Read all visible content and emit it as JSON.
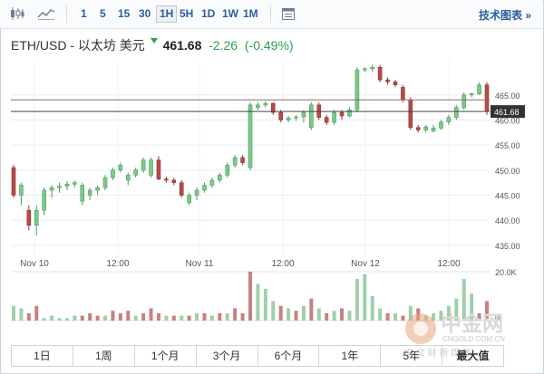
{
  "toolbar": {
    "intervals": [
      "1",
      "5",
      "15",
      "30",
      "1H",
      "5H",
      "1D",
      "1W",
      "1M"
    ],
    "active_interval": "1H",
    "tech_chart_label": "技术图表",
    "tech_chart_suffix": "»"
  },
  "header": {
    "symbol": "ETH/USD - 以太坊 美元",
    "price": "461.68",
    "change": "-2.26",
    "change_pct": "(-0.49%)",
    "colors": {
      "up": "#2aa14a",
      "down": "#c0504d",
      "up_fill": "#7cc98a",
      "down_fill": "#b84a4a"
    }
  },
  "chart_data": {
    "type": "candlestick",
    "y_ticks": [
      "465.00",
      "460.00",
      "455.00",
      "450.00",
      "445.00",
      "440.00",
      "435.00"
    ],
    "ylim": [
      433,
      472
    ],
    "x_ticks": [
      "Nov 10",
      "12:00",
      "Nov 11",
      "12:00",
      "Nov 12",
      "12:00"
    ],
    "last_price": 461.68,
    "ref_line": 464.0,
    "candles": [
      [
        450.5,
        451.0,
        444.5,
        445.0
      ],
      [
        445.0,
        447.5,
        443.0,
        447.0
      ],
      [
        442.0,
        443.0,
        438.0,
        439.0
      ],
      [
        439.0,
        443.0,
        437.0,
        442.0
      ],
      [
        442.0,
        446.5,
        441.0,
        446.0
      ],
      [
        446.0,
        447.0,
        444.5,
        446.5
      ],
      [
        446.5,
        447.5,
        445.5,
        446.8
      ],
      [
        446.8,
        447.8,
        446.0,
        447.2
      ],
      [
        447.2,
        447.9,
        446.5,
        447.5
      ],
      [
        443.8,
        447.5,
        443.0,
        447.0
      ],
      [
        445.0,
        446.5,
        444.0,
        446.0
      ],
      [
        446.0,
        447.0,
        445.0,
        446.5
      ],
      [
        446.5,
        449.0,
        446.0,
        448.5
      ],
      [
        448.5,
        450.5,
        448.0,
        450.0
      ],
      [
        450.0,
        451.5,
        449.5,
        451.0
      ],
      [
        448.0,
        449.5,
        447.0,
        449.0
      ],
      [
        449.0,
        450.5,
        448.5,
        450.0
      ],
      [
        450.0,
        452.5,
        449.5,
        452.0
      ],
      [
        449.0,
        452.5,
        448.5,
        452.0
      ],
      [
        452.0,
        452.8,
        448.0,
        448.2
      ],
      [
        448.2,
        448.7,
        447.5,
        448.0
      ],
      [
        448.0,
        448.5,
        447.0,
        447.5
      ],
      [
        447.5,
        448.0,
        444.5,
        445.0
      ],
      [
        443.5,
        445.5,
        443.0,
        445.0
      ],
      [
        445.0,
        446.5,
        444.0,
        446.0
      ],
      [
        446.0,
        447.5,
        445.5,
        447.0
      ],
      [
        447.0,
        448.5,
        446.5,
        448.0
      ],
      [
        448.0,
        449.5,
        447.5,
        449.0
      ],
      [
        449.0,
        451.5,
        448.5,
        451.0
      ],
      [
        451.0,
        453.0,
        450.5,
        452.5
      ],
      [
        452.5,
        453.0,
        451.0,
        451.5
      ],
      [
        450.5,
        463.5,
        450.0,
        463.0
      ],
      [
        462.5,
        463.5,
        462.0,
        463.0
      ],
      [
        463.0,
        463.8,
        462.5,
        463.3
      ],
      [
        463.3,
        463.5,
        461.0,
        461.5
      ],
      [
        461.5,
        462.0,
        459.5,
        460.0
      ],
      [
        460.0,
        460.8,
        459.5,
        460.4
      ],
      [
        460.4,
        461.0,
        459.8,
        460.6
      ],
      [
        460.6,
        462.0,
        459.5,
        461.5
      ],
      [
        458.5,
        463.5,
        458.0,
        463.0
      ],
      [
        463.0,
        463.5,
        460.0,
        460.5
      ],
      [
        460.5,
        461.0,
        459.0,
        459.5
      ],
      [
        459.5,
        462.0,
        459.0,
        461.5
      ],
      [
        461.5,
        462.0,
        460.0,
        460.8
      ],
      [
        460.8,
        462.5,
        460.5,
        462.0
      ],
      [
        462.0,
        470.5,
        461.5,
        470.0
      ],
      [
        470.0,
        470.5,
        469.5,
        470.2
      ],
      [
        470.2,
        471.0,
        469.5,
        470.5
      ],
      [
        470.5,
        471.0,
        467.5,
        468.0
      ],
      [
        468.0,
        468.5,
        467.0,
        467.6
      ],
      [
        467.6,
        468.0,
        466.5,
        467.0
      ],
      [
        466.5,
        467.0,
        463.5,
        464.0
      ],
      [
        464.0,
        464.5,
        458.0,
        458.5
      ],
      [
        458.5,
        459.0,
        457.5,
        458.0
      ],
      [
        458.0,
        459.0,
        457.5,
        458.6
      ],
      [
        457.8,
        459.0,
        457.5,
        458.4
      ],
      [
        458.4,
        460.0,
        458.0,
        459.6
      ],
      [
        459.6,
        461.0,
        459.0,
        460.5
      ],
      [
        460.5,
        463.0,
        460.0,
        462.5
      ],
      [
        462.5,
        465.5,
        462.0,
        465.0
      ],
      [
        465.0,
        465.5,
        464.5,
        465.2
      ],
      [
        465.2,
        467.5,
        465.0,
        467.0
      ],
      [
        467.0,
        467.5,
        461.0,
        461.68
      ]
    ],
    "volume_ticks": [
      "20.0K",
      "0"
    ],
    "volumes": [
      [
        6,
        0
      ],
      [
        5,
        0
      ],
      [
        3,
        1
      ],
      [
        6,
        1
      ],
      [
        1,
        0
      ],
      [
        2,
        0
      ],
      [
        1,
        0
      ],
      [
        1,
        0
      ],
      [
        2,
        0
      ],
      [
        2,
        1
      ],
      [
        3,
        1
      ],
      [
        2,
        1
      ],
      [
        2,
        0
      ],
      [
        4,
        1
      ],
      [
        3,
        1
      ],
      [
        4,
        1
      ],
      [
        2,
        0
      ],
      [
        3,
        1
      ],
      [
        5,
        1
      ],
      [
        3,
        1
      ],
      [
        2,
        0
      ],
      [
        2,
        1
      ],
      [
        2,
        0
      ],
      [
        2,
        1
      ],
      [
        3,
        0
      ],
      [
        3,
        1
      ],
      [
        2,
        0
      ],
      [
        3,
        1
      ],
      [
        3,
        0
      ],
      [
        5,
        1
      ],
      [
        3,
        1
      ],
      [
        20,
        1
      ],
      [
        15,
        0
      ],
      [
        13,
        0
      ],
      [
        8,
        0
      ],
      [
        6,
        1
      ],
      [
        5,
        0
      ],
      [
        4,
        1
      ],
      [
        6,
        0
      ],
      [
        9,
        1
      ],
      [
        5,
        0
      ],
      [
        3,
        1
      ],
      [
        4,
        0
      ],
      [
        5,
        1
      ],
      [
        4,
        0
      ],
      [
        17,
        0
      ],
      [
        19,
        0
      ],
      [
        10,
        0
      ],
      [
        5,
        0
      ],
      [
        3,
        1
      ],
      [
        3,
        0
      ],
      [
        2,
        1
      ],
      [
        6,
        0
      ],
      [
        5,
        1
      ],
      [
        2,
        0
      ],
      [
        3,
        0
      ],
      [
        4,
        0
      ],
      [
        6,
        0
      ],
      [
        9,
        0
      ],
      [
        17,
        0
      ],
      [
        11,
        0
      ],
      [
        3,
        1
      ],
      [
        8,
        1
      ]
    ]
  },
  "range_bar": [
    "1日",
    "1周",
    "1个月",
    "3个月",
    "6个月",
    "1年",
    "5年",
    "最大值"
  ],
  "watermark": {
    "cn": "中金网",
    "url": "CNGOLD.COM.CN",
    "tagline": "中 文 财 新 媒 体"
  }
}
